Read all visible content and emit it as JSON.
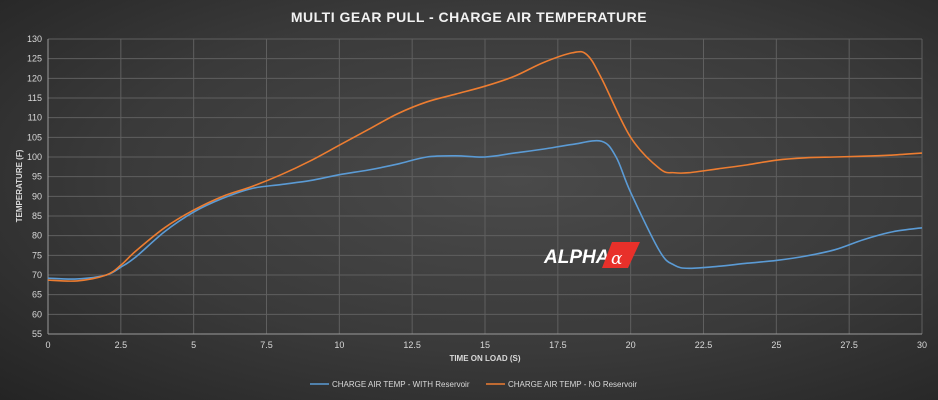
{
  "chart_data": {
    "type": "line",
    "title": "MULTI GEAR PULL - CHARGE AIR TEMPERATURE",
    "xlabel": "TIME ON LOAD (S)",
    "ylabel": "TEMPERATURE (F)",
    "xlim": [
      0,
      30
    ],
    "ylim": [
      55,
      130
    ],
    "xticks": [
      "0",
      "2.5",
      "5",
      "7.5",
      "10",
      "12.5",
      "15",
      "17.5",
      "20",
      "22.5",
      "25",
      "27.5",
      "30"
    ],
    "yticks": [
      "55",
      "60",
      "65",
      "70",
      "75",
      "80",
      "85",
      "90",
      "95",
      "100",
      "105",
      "110",
      "115",
      "120",
      "125",
      "130"
    ],
    "grid": true,
    "legend_position": "bottom",
    "logo_text": "ALPHA",
    "series": [
      {
        "name": "CHARGE AIR TEMP - WITH Reservoir",
        "color": "#5b9bd5",
        "x": [
          0,
          1,
          2,
          2.5,
          3,
          4,
          5,
          6,
          7,
          8,
          9,
          10,
          11,
          12,
          13,
          14,
          15,
          16,
          17,
          18,
          19,
          19.5,
          20,
          21,
          21.5,
          22,
          23,
          24,
          25,
          26,
          27,
          28,
          29,
          30
        ],
        "y": [
          69.2,
          69,
          70,
          72,
          74.5,
          81,
          86,
          89.5,
          92,
          93,
          94,
          95.5,
          96.7,
          98.2,
          100,
          100.3,
          100,
          101,
          102,
          103.2,
          104,
          100,
          91,
          76,
          72.5,
          71.7,
          72.2,
          73,
          73.7,
          74.8,
          76.4,
          79,
          81,
          82
        ]
      },
      {
        "name": "CHARGE AIR TEMP - NO Reservoir",
        "color": "#ed7d31",
        "x": [
          0,
          1,
          2,
          2.5,
          3,
          4,
          5,
          6,
          7,
          8,
          9,
          10,
          11,
          12,
          13,
          14,
          15,
          16,
          17,
          18,
          18.5,
          19,
          20,
          21,
          21.5,
          22,
          23,
          24,
          25,
          26,
          27,
          28,
          29,
          30
        ],
        "y": [
          68.7,
          68.5,
          70,
          72.5,
          76,
          82,
          86.5,
          90,
          92.5,
          95.5,
          99,
          103,
          107,
          111,
          114,
          116,
          118,
          120.5,
          124,
          126.5,
          126,
          120,
          105,
          97,
          96,
          96,
          97,
          98,
          99.2,
          99.8,
          100,
          100.2,
          100.5,
          101
        ]
      }
    ]
  }
}
